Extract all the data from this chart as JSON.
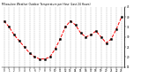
{
  "title": "Milwaukee Weather Outdoor Temperature per Hour (Last 24 Hours)",
  "hours": [
    0,
    1,
    2,
    3,
    4,
    5,
    6,
    7,
    8,
    9,
    10,
    11,
    12,
    13,
    14,
    15,
    16,
    17,
    18,
    19,
    20,
    21,
    22,
    23
  ],
  "temps": [
    38,
    35,
    31,
    28,
    25,
    22,
    20,
    19,
    19,
    20,
    24,
    29,
    35,
    38,
    36,
    32,
    30,
    31,
    33,
    30,
    27,
    29,
    34,
    40
  ],
  "line_color": "#ff0000",
  "marker_color": "#000000",
  "bg_color": "#ffffff",
  "grid_color": "#888888",
  "ylim_min": 15,
  "ylim_max": 45,
  "ytick_interval": 5,
  "title_fontsize": 2.2,
  "xlabel_fontsize": 2.0,
  "ylabel_fontsize": 2.0
}
